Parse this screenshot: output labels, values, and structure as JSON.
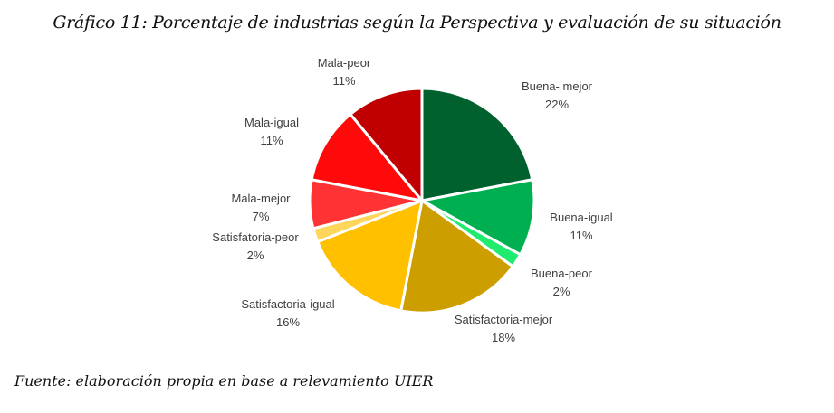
{
  "chart_data": {
    "type": "pie",
    "title": "Gráfico 11: Porcentaje de industrias según la Perspectiva y evaluación de su situación",
    "source": "Fuente: elaboración propia en base a relevamiento UIER",
    "start": "12 o'clock, clockwise",
    "slices": [
      {
        "label": "Buena- mejor",
        "value": 22,
        "display": "22%",
        "color": "#00612E"
      },
      {
        "label": "Buena-igual",
        "value": 11,
        "display": "11%",
        "color": "#00B050"
      },
      {
        "label": "Buena-peor",
        "value": 2,
        "display": "2%",
        "color": "#1FEB6E"
      },
      {
        "label": "Satisfactoria-mejor",
        "value": 18,
        "display": "18%",
        "color": "#CC9E00"
      },
      {
        "label": "Satisfactoria-igual",
        "value": 16,
        "display": "16%",
        "color": "#FFC000"
      },
      {
        "label": "Satisfatoria-peor",
        "value": 2,
        "display": "2%",
        "color": "#FFD65C"
      },
      {
        "label": "Mala-mejor",
        "value": 7,
        "display": "7%",
        "color": "#FF3333"
      },
      {
        "label": "Mala-igual",
        "value": 11,
        "display": "11%",
        "color": "#FF0A0A"
      },
      {
        "label": "Mala-peor",
        "value": 11,
        "display": "11%",
        "color": "#C00000"
      }
    ]
  }
}
